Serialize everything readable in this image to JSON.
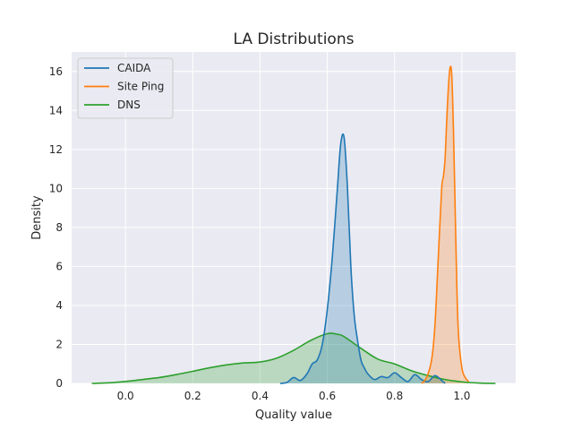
{
  "chart_data": {
    "type": "area",
    "title": "LA Distributions",
    "xlabel": "Quality value",
    "ylabel": "Density",
    "xlim": [
      -0.16,
      1.16
    ],
    "ylim": [
      0,
      17
    ],
    "xticks": [
      "0.0",
      "0.2",
      "0.4",
      "0.6",
      "0.8",
      "1.0"
    ],
    "xtick_values": [
      0.0,
      0.2,
      0.4,
      0.6,
      0.8,
      1.0
    ],
    "yticks": [
      "0",
      "2",
      "4",
      "6",
      "8",
      "10",
      "12",
      "14",
      "16"
    ],
    "ytick_values": [
      0,
      2,
      4,
      6,
      8,
      10,
      12,
      14,
      16
    ],
    "grid": true,
    "legend_position": "top-left",
    "series": [
      {
        "name": "CAIDA",
        "color": "#1f77b4",
        "x": [
          0.46,
          0.48,
          0.5,
          0.52,
          0.54,
          0.555,
          0.57,
          0.585,
          0.6,
          0.615,
          0.63,
          0.64,
          0.65,
          0.66,
          0.67,
          0.68,
          0.69,
          0.7,
          0.71,
          0.72,
          0.74,
          0.76,
          0.78,
          0.8,
          0.82,
          0.84,
          0.86,
          0.88,
          0.9,
          0.92,
          0.94,
          0.95
        ],
        "y": [
          0.0,
          0.05,
          0.3,
          0.15,
          0.5,
          1.0,
          1.2,
          2.0,
          3.8,
          6.5,
          10.0,
          12.3,
          12.6,
          10.0,
          6.0,
          3.5,
          2.2,
          1.2,
          0.8,
          0.5,
          0.2,
          0.35,
          0.3,
          0.55,
          0.3,
          0.1,
          0.45,
          0.2,
          0.1,
          0.4,
          0.15,
          0.0
        ]
      },
      {
        "name": "Site Ping",
        "color": "#ff7f0e",
        "x": [
          0.88,
          0.895,
          0.91,
          0.92,
          0.93,
          0.94,
          0.945,
          0.95,
          0.955,
          0.96,
          0.965,
          0.97,
          0.975,
          0.98,
          0.985,
          0.99,
          1.0,
          1.01,
          1.02
        ],
        "y": [
          0.0,
          0.3,
          1.2,
          3.0,
          6.5,
          10.0,
          10.6,
          11.5,
          13.5,
          15.2,
          16.2,
          15.8,
          13.0,
          9.0,
          5.0,
          2.5,
          0.8,
          0.3,
          0.1
        ]
      },
      {
        "name": "DNS",
        "color": "#2ca02c",
        "x": [
          -0.1,
          -0.05,
          0.0,
          0.05,
          0.1,
          0.15,
          0.2,
          0.25,
          0.3,
          0.35,
          0.4,
          0.45,
          0.5,
          0.55,
          0.6,
          0.63,
          0.65,
          0.7,
          0.75,
          0.8,
          0.85,
          0.9,
          0.95,
          1.0,
          1.05,
          1.1
        ],
        "y": [
          0.0,
          0.03,
          0.1,
          0.2,
          0.3,
          0.45,
          0.62,
          0.8,
          0.95,
          1.05,
          1.1,
          1.3,
          1.7,
          2.2,
          2.55,
          2.52,
          2.4,
          1.8,
          1.25,
          1.0,
          0.65,
          0.4,
          0.2,
          0.08,
          0.02,
          0.0
        ]
      }
    ]
  }
}
